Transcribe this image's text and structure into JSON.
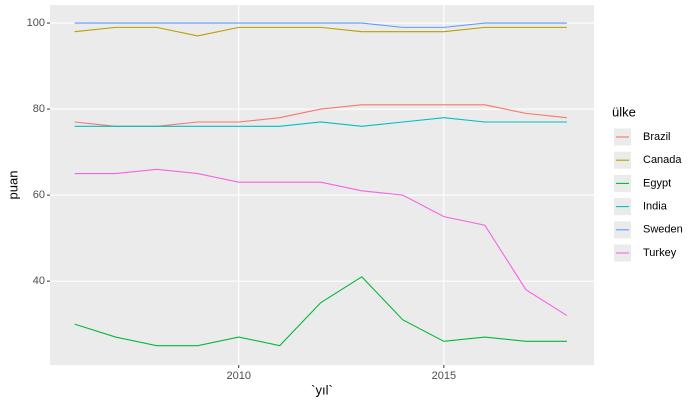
{
  "chart_data": {
    "type": "line",
    "x_label": "`yıl`",
    "y_label": "puan",
    "legend_title": "ülke",
    "x": [
      2006,
      2007,
      2008,
      2009,
      2010,
      2011,
      2012,
      2013,
      2014,
      2015,
      2016,
      2017,
      2018
    ],
    "series": [
      {
        "name": "Brazil",
        "color": "#F8766D",
        "values": [
          77,
          76,
          76,
          77,
          77,
          78,
          80,
          81,
          81,
          81,
          81,
          79,
          78
        ]
      },
      {
        "name": "Canada",
        "color": "#B79F00",
        "values": [
          98,
          99,
          99,
          97,
          99,
          99,
          99,
          98,
          98,
          98,
          99,
          99,
          99
        ]
      },
      {
        "name": "Egypt",
        "color": "#00BA38",
        "values": [
          30,
          27,
          25,
          25,
          27,
          25,
          35,
          41,
          31,
          26,
          27,
          26,
          26
        ]
      },
      {
        "name": "India",
        "color": "#00BFC4",
        "values": [
          76,
          76,
          76,
          76,
          76,
          76,
          77,
          76,
          77,
          78,
          77,
          77,
          77
        ]
      },
      {
        "name": "Sweden",
        "color": "#619CFF",
        "values": [
          100,
          100,
          100,
          100,
          100,
          100,
          100,
          100,
          99,
          99,
          100,
          100,
          100
        ]
      },
      {
        "name": "Turkey",
        "color": "#F564E3",
        "values": [
          65,
          65,
          66,
          65,
          63,
          63,
          63,
          61,
          60,
          55,
          53,
          38,
          32
        ]
      }
    ],
    "xlim": [
      2005.4,
      2018.66
    ],
    "ylim": [
      20.5,
      104.2
    ],
    "xticks": [
      2010,
      2015
    ],
    "yticks": [
      40,
      60,
      80,
      100
    ],
    "grid": true,
    "legend": "right"
  }
}
